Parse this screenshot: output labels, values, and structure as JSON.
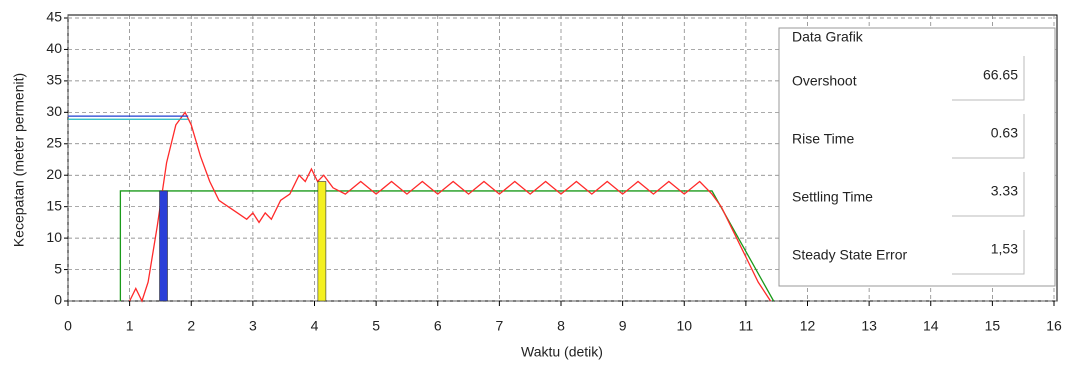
{
  "chart_data": {
    "type": "line",
    "xlabel": "Waktu (detik)",
    "ylabel": "Kecepatan (meter permenit)",
    "xlim": [
      0,
      16
    ],
    "ylim": [
      0,
      45
    ],
    "xticks": [
      0,
      1,
      2,
      3,
      4,
      5,
      6,
      7,
      8,
      9,
      10,
      11,
      12,
      13,
      14,
      15,
      16
    ],
    "yticks": [
      0,
      5,
      10,
      15,
      20,
      25,
      30,
      35,
      40,
      45
    ],
    "grid": true,
    "series": [
      {
        "color": "#1a9a1a",
        "x": [
          0.85,
          0.85,
          10.45,
          11.45
        ],
        "values": [
          0,
          17.5,
          17.5,
          0
        ]
      },
      {
        "color": "#ff2a2a",
        "x": [
          1.0,
          1.1,
          1.2,
          1.3,
          1.45,
          1.6,
          1.75,
          1.9,
          2.0,
          2.15,
          2.3,
          2.45,
          2.6,
          2.75,
          2.9,
          3.0,
          3.1,
          3.2,
          3.3,
          3.45,
          3.6,
          3.75,
          3.85,
          3.95,
          4.05,
          4.15,
          4.3,
          4.5,
          4.75,
          5.0,
          5.25,
          5.5,
          5.75,
          6.0,
          6.25,
          6.5,
          6.75,
          7.0,
          7.25,
          7.5,
          7.75,
          8.0,
          8.25,
          8.5,
          8.75,
          9.0,
          9.25,
          9.5,
          9.75,
          10.0,
          10.25,
          10.45,
          10.6,
          10.8,
          11.0,
          11.2,
          11.4
        ],
        "values": [
          0,
          2,
          0,
          3,
          12,
          22,
          28,
          30,
          28,
          23,
          19,
          16,
          15,
          14,
          13,
          14,
          12.5,
          14,
          13,
          16,
          17,
          20,
          19,
          21,
          19,
          20,
          18,
          17,
          19,
          17,
          19,
          17,
          19,
          17,
          19,
          17,
          19,
          17,
          19,
          17,
          19,
          17,
          19,
          17,
          19,
          17,
          19,
          17,
          19,
          17,
          19,
          17,
          15,
          11,
          7,
          3,
          0
        ]
      },
      {
        "color": "#1f3fd0",
        "x": [
          0,
          1.95
        ],
        "values": [
          29.4,
          29.4
        ]
      },
      {
        "color": "#20b8c0",
        "x": [
          0,
          1.95
        ],
        "values": [
          28.9,
          28.9
        ]
      }
    ],
    "markers": [
      {
        "x": 1.55,
        "value": 17.5,
        "color": "#2a3fd8"
      },
      {
        "x": 4.12,
        "value": 19,
        "color": "#f4f020"
      }
    ]
  },
  "panel": {
    "title": "Data Grafik",
    "items": [
      {
        "label": "Overshoot",
        "value": "66.65"
      },
      {
        "label": "Rise Time",
        "value": "0.63"
      },
      {
        "label": "Settling Time",
        "value": "3.33"
      },
      {
        "label": "Steady State Error",
        "value": "1,53"
      }
    ]
  }
}
